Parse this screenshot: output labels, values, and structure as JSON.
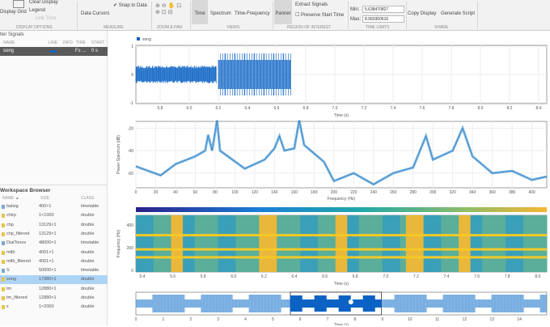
{
  "toolstrip": {
    "display_grid": "Display Grid",
    "clear_display": "Clear Display",
    "legend": "Legend",
    "link_time": "Link Time",
    "display_options": "DISPLAY OPTIONS",
    "data_cursors": "Data Cursors",
    "snap_to_data": "Snap to Data",
    "measure": "MEASURE",
    "zoom_pan": "ZOOM & PAN",
    "time": "Time",
    "spectrum": "Spectrum",
    "time_frequency": "Time-Frequency",
    "views": "VIEWS",
    "panner": "Panner",
    "extract_signals": "Extract Signals",
    "preserve_start_time": "Preserve Start Time",
    "region_of_interest": "REGION OF INTEREST",
    "min_label": "Min:",
    "min_value": "5.638470827",
    "max_label": "Max:",
    "max_value": "8.960360616",
    "time_limits": "TIME LIMITS",
    "copy_display": "Copy Display",
    "generate_script": "Generate Script",
    "share": "SHARE"
  },
  "filter_signals": {
    "title": "lter Signals",
    "columns": [
      "NAME",
      "LINE",
      "INFO",
      "TIME",
      "START"
    ],
    "row": {
      "name": "song",
      "time": "Fs ...",
      "start": "0 s"
    }
  },
  "workspace": {
    "title": "Workspace Browser",
    "columns": [
      "NAME ▲",
      "SIZE",
      "CLASS"
    ],
    "rows": [
      {
        "name": "batsig",
        "size": "400×1",
        "class": "timetable"
      },
      {
        "name": "chirp",
        "size": "1×1000",
        "class": "double"
      },
      {
        "name": "chp",
        "size": "13129×1",
        "class": "double"
      },
      {
        "name": "chp_filtered",
        "size": "13129×1",
        "class": "double"
      },
      {
        "name": "DialTones",
        "size": "48000×1",
        "class": "timetable"
      },
      {
        "name": "mtlb",
        "size": "4001×1",
        "class": "double"
      },
      {
        "name": "mtlb_filtered",
        "size": "4001×1",
        "class": "double"
      },
      {
        "name": "S",
        "size": "50000×1",
        "class": "timetable"
      },
      {
        "name": "song",
        "size": "17980×1",
        "class": "double"
      },
      {
        "name": "tm",
        "size": "12880×1",
        "class": "double"
      },
      {
        "name": "tm_filtered",
        "size": "12880×1",
        "class": "double"
      },
      {
        "name": "x",
        "size": "1×2000",
        "class": "double"
      }
    ],
    "selected": "song"
  },
  "colors": {
    "signal": "#0b62c4",
    "spectrum": "#4a9ad6",
    "selected_row": "#aed4f5",
    "panner_light": "#6aa5de"
  },
  "time_plot": {
    "legend": "song",
    "xlabel": "Time (s)",
    "yticks": [
      "1",
      "0",
      "-1"
    ],
    "xticks": [
      "5.8",
      "6.0",
      "6.2",
      "6.4",
      "6.6",
      "6.8",
      "7.0",
      "7.2",
      "7.4",
      "7.6",
      "7.8",
      "8.0",
      "8.2",
      "8.4"
    ]
  },
  "chart_data": [
    {
      "type": "line",
      "title": "",
      "xlabel": "Frequency (Hz)",
      "ylabel": "Power Spectrum (dB)",
      "xlim": [
        0,
        415
      ],
      "ylim": [
        -73,
        -14
      ],
      "xticks": [
        "0",
        "20",
        "40",
        "60",
        "80",
        "100",
        "120",
        "140",
        "160",
        "180",
        "200",
        "220",
        "240",
        "260",
        "280",
        "300",
        "320",
        "340",
        "360",
        "380",
        "400"
      ],
      "yticks": [
        "-20",
        "-40",
        "-60"
      ],
      "x": [
        0,
        25,
        40,
        60,
        70,
        73,
        77,
        82,
        85,
        110,
        130,
        140,
        145,
        150,
        160,
        165,
        170,
        190,
        200,
        220,
        240,
        260,
        280,
        293,
        300,
        320,
        330,
        340,
        360,
        380,
        400,
        415
      ],
      "y": [
        -54,
        -62,
        -52,
        -45,
        -40,
        -26,
        -40,
        -13,
        -40,
        -56,
        -48,
        -38,
        -27,
        -40,
        -38,
        -13,
        -35,
        -50,
        -67,
        -60,
        -70,
        -60,
        -55,
        -27,
        -48,
        -40,
        -20,
        -45,
        -60,
        -58,
        -66,
        -63
      ]
    },
    {
      "type": "heatmap",
      "xlabel": "Time (s)",
      "ylabel": "Frequency (Hz)",
      "yticks": [
        "400",
        "200",
        "0"
      ],
      "xticks": [
        "5.4",
        "5.6",
        "5.8",
        "6.0",
        "6.2",
        "6.4",
        "6.6",
        "6.8",
        "7.0",
        "7.2",
        "7.4",
        "7.6",
        "7.8",
        "8.0"
      ]
    }
  ],
  "panner": {
    "xticks": [
      "0",
      "1",
      "2",
      "3",
      "4",
      "5",
      "6",
      "7",
      "8",
      "9",
      "10",
      "11",
      "12",
      "13",
      "14"
    ],
    "xlabel": "Time (s)",
    "selection": [
      5.64,
      8.96
    ]
  }
}
